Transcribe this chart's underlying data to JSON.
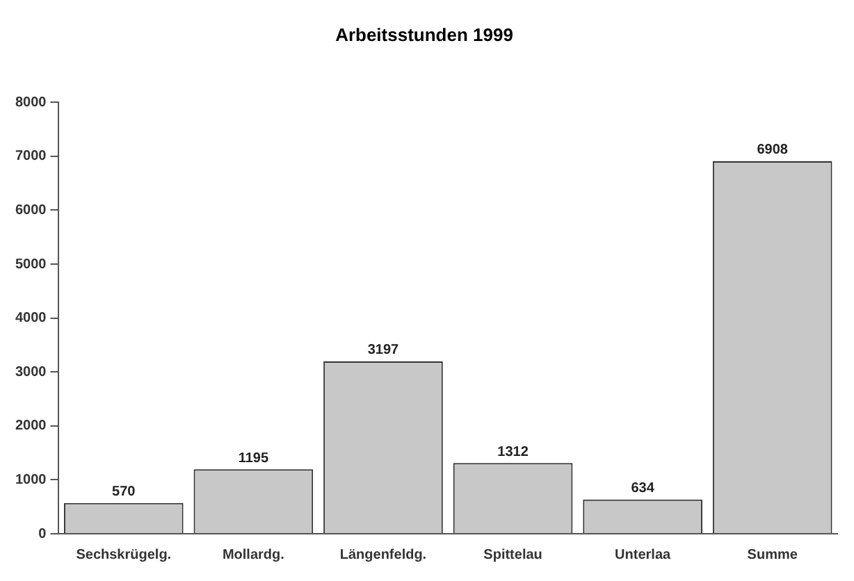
{
  "chart_data": {
    "type": "bar",
    "title": "Arbeitsstunden 1999",
    "categories": [
      "Sechskrügelg.",
      "Mollardg.",
      "Längenfeldg.",
      "Spittelau",
      "Unterlaa",
      "Summe"
    ],
    "values": [
      570,
      1195,
      3197,
      1312,
      634,
      6908
    ],
    "color": "#c8c8c8",
    "ylim": [
      0,
      8000
    ],
    "yticks": [
      0,
      1000,
      2000,
      3000,
      4000,
      5000,
      6000,
      7000,
      8000
    ],
    "grid": false,
    "data_labels": true
  }
}
